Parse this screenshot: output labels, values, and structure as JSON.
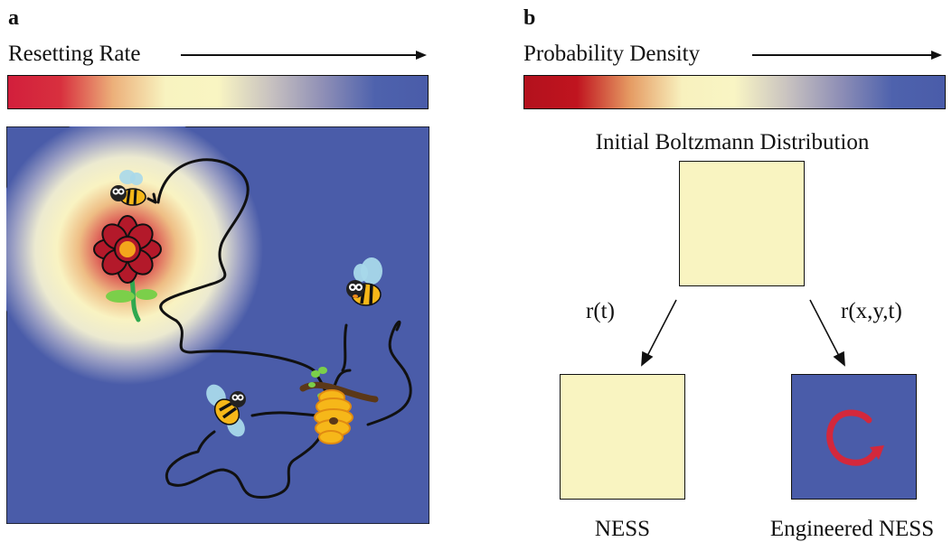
{
  "panel_a": {
    "letter": "a",
    "heading": "Resetting Rate",
    "colorbar": [
      "#d21f3c",
      "#d8303e",
      "#ecb07a",
      "#f8f3c0",
      "#f9f5c2",
      "#c8c2c0",
      "#8f8fb6",
      "#4e62ad",
      "#4a5ca9"
    ],
    "scene": {
      "background_color": "#4a5ca9",
      "flower_color": "#b3192a",
      "flower_center_color": "#f4a51c",
      "stem_color": "#2fa84f",
      "hive_color": "#f6b719",
      "bee_count": 3,
      "icons": [
        "flower-icon",
        "bee-icon",
        "beehive-icon"
      ]
    }
  },
  "panel_b": {
    "letter": "b",
    "heading": "Probability Density",
    "colorbar": [
      "#b3111d",
      "#c0141f",
      "#e59a62",
      "#f8f1be",
      "#f9f5c4",
      "#c9c3c0",
      "#8f8fb6",
      "#4e62ad",
      "#4a5ca9"
    ],
    "initial_title": "Initial Boltzmann Distribution",
    "left_arrow_label": "r(t)",
    "right_arrow_label": "r(x,y,t)",
    "left_result_label": "NESS",
    "right_result_label": "Engineered NESS",
    "uniform_color": "#f9f4c1",
    "engineered_background": "#4a5ca9",
    "circulation_color": "#d3283c"
  }
}
